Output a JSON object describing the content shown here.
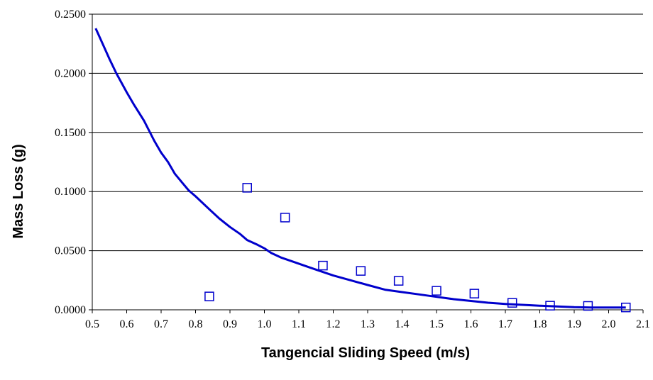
{
  "chart_data": {
    "type": "scatter",
    "title": "",
    "xlabel": "Tangencial Sliding Speed (m/s)",
    "ylabel": "Mass Loss (g)",
    "xlim": [
      0.5,
      2.1
    ],
    "ylim": [
      0,
      0.25
    ],
    "xticks": [
      "0.5",
      "0.6",
      "0.7",
      "0.8",
      "0.9",
      "1.0",
      "1.1",
      "1.2",
      "1.3",
      "1.4",
      "1.5",
      "1.6",
      "1.7",
      "1.8",
      "1.9",
      "2.0",
      "2.1"
    ],
    "xtick_values": [
      0.5,
      0.6,
      0.7,
      0.8,
      0.9,
      1.0,
      1.1,
      1.2,
      1.3,
      1.4,
      1.5,
      1.6,
      1.7,
      1.8,
      1.9,
      2.0,
      2.1
    ],
    "yticks": [
      "0.0000",
      "0.0500",
      "0.1000",
      "0.1500",
      "0.2000",
      "0.2500"
    ],
    "ytick_values": [
      0,
      0.05,
      0.1,
      0.15,
      0.2,
      0.25
    ],
    "grid": "horizontal",
    "legend": "none",
    "colors": {
      "series": "#0000cc",
      "grid": "#000000",
      "axis": "#000000"
    },
    "series": [
      {
        "kind": "markers",
        "marker": "open-square",
        "x": [
          0.84,
          0.95,
          1.06,
          1.17,
          1.28,
          1.39,
          1.5,
          1.61,
          1.72,
          1.83,
          1.94,
          2.05
        ],
        "y": [
          0.0113,
          0.1032,
          0.078,
          0.0374,
          0.0329,
          0.0245,
          0.0161,
          0.0137,
          0.0059,
          0.0035,
          0.0033,
          0.002
        ]
      },
      {
        "kind": "line",
        "x": [
          0.51,
          0.53,
          0.55,
          0.57,
          0.6,
          0.62,
          0.65,
          0.68,
          0.7,
          0.72,
          0.74,
          0.76,
          0.78,
          0.8,
          0.84,
          0.87,
          0.9,
          0.93,
          0.95,
          0.98,
          1.0,
          1.02,
          1.05,
          1.08,
          1.1,
          1.12,
          1.15,
          1.2,
          1.25,
          1.3,
          1.35,
          1.4,
          1.45,
          1.5,
          1.55,
          1.6,
          1.65,
          1.7,
          1.75,
          1.8,
          1.85,
          1.9,
          1.95,
          2.0,
          2.05
        ],
        "y": [
          0.238,
          0.225,
          0.212,
          0.2,
          0.184,
          0.174,
          0.16,
          0.143,
          0.133,
          0.125,
          0.115,
          0.108,
          0.101,
          0.096,
          0.085,
          0.077,
          0.07,
          0.064,
          0.059,
          0.055,
          0.052,
          0.048,
          0.044,
          0.041,
          0.039,
          0.037,
          0.034,
          0.029,
          0.025,
          0.021,
          0.017,
          0.015,
          0.013,
          0.011,
          0.009,
          0.0075,
          0.006,
          0.005,
          0.0042,
          0.0035,
          0.0028,
          0.0022,
          0.002,
          0.002,
          0.002
        ]
      }
    ]
  }
}
